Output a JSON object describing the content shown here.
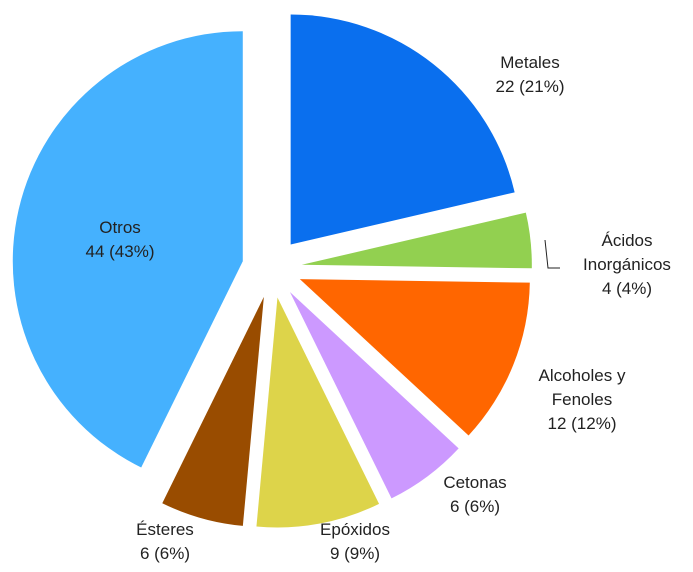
{
  "chart_data": {
    "type": "pie",
    "categories": [
      "Metales",
      "Ácidos Inorgánicos",
      "Alcoholes y Fenoles",
      "Cetonas",
      "Epóxidos",
      "Ésteres",
      "Otros"
    ],
    "values": [
      22,
      4,
      12,
      6,
      9,
      6,
      44
    ],
    "value_labels": [
      "22 (21%)",
      "4 (4%)",
      "12 (12%)",
      "6 (6%)",
      "9 (9%)",
      "6 (6%)",
      "44 (43%)"
    ],
    "colors": [
      "#0a6fee",
      "#92d050",
      "#ff6600",
      "#cc99ff",
      "#ddd44a",
      "#994c00",
      "#45b1fe"
    ]
  }
}
